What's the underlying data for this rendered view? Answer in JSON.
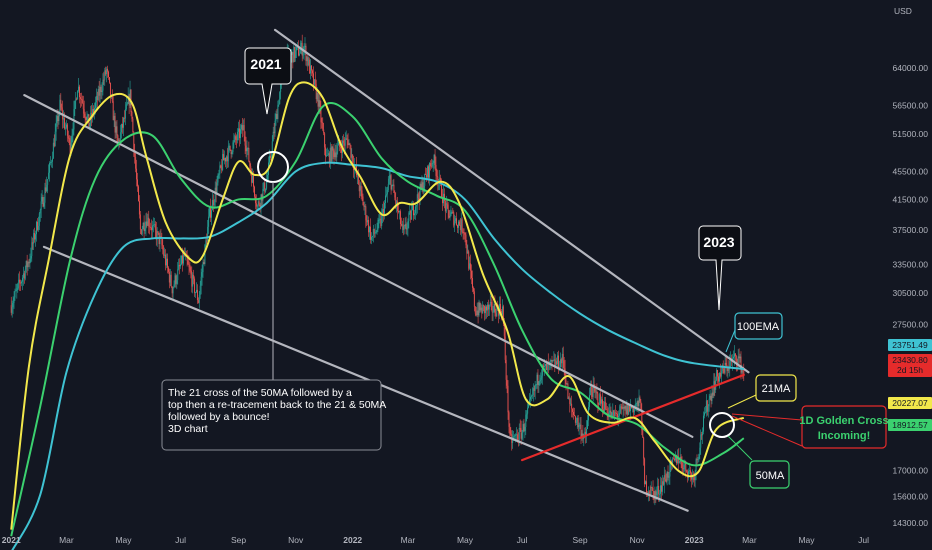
{
  "chart_data": {
    "type": "candlestick",
    "currency_label": "USD",
    "x_ticks": [
      "2021",
      "Mar",
      "May",
      "Jul",
      "Sep",
      "Nov",
      "2022",
      "Mar",
      "May",
      "Jul",
      "Sep",
      "Nov",
      "2023",
      "Mar",
      "May",
      "Jul"
    ],
    "x_tick_dates": [
      "2021-01-01",
      "2021-03-01",
      "2021-05-01",
      "2021-07-01",
      "2021-09-01",
      "2021-11-01",
      "2022-01-01",
      "2022-03-01",
      "2022-05-01",
      "2022-07-01",
      "2022-09-01",
      "2022-11-01",
      "2023-01-01",
      "2023-03-01",
      "2023-05-01",
      "2023-07-01"
    ],
    "y_ticks": [
      64000,
      56500,
      51500,
      45500,
      41500,
      37500,
      33500,
      30500,
      27500,
      17000,
      15600,
      14300
    ],
    "y_tick_labels": [
      "64000.00",
      "56500.00",
      "51500.00",
      "45500.00",
      "41500.00",
      "37500.00",
      "33500.00",
      "30500.00",
      "27500.00",
      "17000.00",
      "15600.00",
      "14300.00"
    ],
    "y_scale": "log",
    "ylim": [
      13800,
      80000
    ],
    "xlim": [
      "2020-12-20",
      "2023-07-25"
    ],
    "grid": false,
    "price_series": [
      {
        "date": "2021-01-01",
        "close": 29300
      },
      {
        "date": "2021-01-20",
        "close": 34000
      },
      {
        "date": "2021-02-10",
        "close": 45000
      },
      {
        "date": "2021-02-22",
        "close": 56500
      },
      {
        "date": "2021-03-05",
        "close": 49500
      },
      {
        "date": "2021-03-13",
        "close": 60500
      },
      {
        "date": "2021-03-25",
        "close": 53000
      },
      {
        "date": "2021-04-13",
        "close": 63500
      },
      {
        "date": "2021-04-25",
        "close": 49500
      },
      {
        "date": "2021-05-08",
        "close": 58500
      },
      {
        "date": "2021-05-19",
        "close": 37500
      },
      {
        "date": "2021-05-26",
        "close": 39000
      },
      {
        "date": "2021-06-10",
        "close": 36000
      },
      {
        "date": "2021-06-22",
        "close": 31000
      },
      {
        "date": "2021-07-05",
        "close": 34500
      },
      {
        "date": "2021-07-20",
        "close": 29800
      },
      {
        "date": "2021-08-01",
        "close": 39500
      },
      {
        "date": "2021-08-15",
        "close": 47000
      },
      {
        "date": "2021-09-06",
        "close": 52500
      },
      {
        "date": "2021-09-21",
        "close": 40500
      },
      {
        "date": "2021-10-01",
        "close": 44000
      },
      {
        "date": "2021-10-20",
        "close": 65500
      },
      {
        "date": "2021-11-10",
        "close": 68500
      },
      {
        "date": "2021-11-25",
        "close": 57500
      },
      {
        "date": "2021-12-04",
        "close": 47500
      },
      {
        "date": "2021-12-27",
        "close": 50500
      },
      {
        "date": "2022-01-21",
        "close": 36500
      },
      {
        "date": "2022-01-31",
        "close": 38500
      },
      {
        "date": "2022-02-10",
        "close": 44500
      },
      {
        "date": "2022-02-24",
        "close": 37000
      },
      {
        "date": "2022-03-28",
        "close": 47500
      },
      {
        "date": "2022-04-11",
        "close": 40000
      },
      {
        "date": "2022-04-30",
        "close": 37700
      },
      {
        "date": "2022-05-12",
        "close": 28800
      },
      {
        "date": "2022-06-10",
        "close": 29000
      },
      {
        "date": "2022-06-18",
        "close": 18700
      },
      {
        "date": "2022-07-01",
        "close": 19300
      },
      {
        "date": "2022-07-20",
        "close": 23500
      },
      {
        "date": "2022-08-14",
        "close": 24500
      },
      {
        "date": "2022-08-20",
        "close": 21200
      },
      {
        "date": "2022-09-07",
        "close": 18800
      },
      {
        "date": "2022-09-12",
        "close": 22300
      },
      {
        "date": "2022-10-05",
        "close": 20300
      },
      {
        "date": "2022-11-05",
        "close": 21200
      },
      {
        "date": "2022-11-09",
        "close": 16200
      },
      {
        "date": "2022-11-21",
        "close": 15700
      },
      {
        "date": "2022-12-14",
        "close": 17800
      },
      {
        "date": "2022-12-31",
        "close": 16600
      },
      {
        "date": "2023-01-14",
        "close": 20900
      },
      {
        "date": "2023-01-25",
        "close": 23100
      },
      {
        "date": "2023-02-16",
        "close": 24800
      },
      {
        "date": "2023-02-23",
        "close": 23430.8
      }
    ],
    "series": [
      {
        "name": "21MA",
        "color": "#f2e84b",
        "points": [
          {
            "date": "2021-01-01",
            "value": 14000
          },
          {
            "date": "2021-01-20",
            "value": 24000
          },
          {
            "date": "2021-02-10",
            "value": 34000
          },
          {
            "date": "2021-03-05",
            "value": 48000
          },
          {
            "date": "2021-03-28",
            "value": 54500
          },
          {
            "date": "2021-04-20",
            "value": 58500
          },
          {
            "date": "2021-05-10",
            "value": 57000
          },
          {
            "date": "2021-05-25",
            "value": 48000
          },
          {
            "date": "2021-06-15",
            "value": 38500
          },
          {
            "date": "2021-07-10",
            "value": 34200
          },
          {
            "date": "2021-07-25",
            "value": 34500
          },
          {
            "date": "2021-08-15",
            "value": 41500
          },
          {
            "date": "2021-09-01",
            "value": 47000
          },
          {
            "date": "2021-09-18",
            "value": 45000
          },
          {
            "date": "2021-10-05",
            "value": 46500
          },
          {
            "date": "2021-10-25",
            "value": 58000
          },
          {
            "date": "2021-11-10",
            "value": 61000
          },
          {
            "date": "2021-11-30",
            "value": 58000
          },
          {
            "date": "2021-12-20",
            "value": 49500
          },
          {
            "date": "2022-01-10",
            "value": 44500
          },
          {
            "date": "2022-02-01",
            "value": 39500
          },
          {
            "date": "2022-02-20",
            "value": 41000
          },
          {
            "date": "2022-03-10",
            "value": 41000
          },
          {
            "date": "2022-04-05",
            "value": 44000
          },
          {
            "date": "2022-04-25",
            "value": 41000
          },
          {
            "date": "2022-05-20",
            "value": 32500
          },
          {
            "date": "2022-06-15",
            "value": 27000
          },
          {
            "date": "2022-07-05",
            "value": 21500
          },
          {
            "date": "2022-07-28",
            "value": 21500
          },
          {
            "date": "2022-08-20",
            "value": 23200
          },
          {
            "date": "2022-09-10",
            "value": 20500
          },
          {
            "date": "2022-10-05",
            "value": 19900
          },
          {
            "date": "2022-10-30",
            "value": 20200
          },
          {
            "date": "2022-11-20",
            "value": 18700
          },
          {
            "date": "2022-12-15",
            "value": 17000
          },
          {
            "date": "2023-01-05",
            "value": 16900
          },
          {
            "date": "2023-01-25",
            "value": 19500
          },
          {
            "date": "2023-02-23",
            "value": 20227.07
          }
        ]
      },
      {
        "name": "50MA",
        "color": "#3bd16f",
        "points": [
          {
            "date": "2021-01-01",
            "value": 13700
          },
          {
            "date": "2021-02-01",
            "value": 21000
          },
          {
            "date": "2021-03-05",
            "value": 34000
          },
          {
            "date": "2021-04-01",
            "value": 44500
          },
          {
            "date": "2021-05-01",
            "value": 50500
          },
          {
            "date": "2021-06-01",
            "value": 51200
          },
          {
            "date": "2021-07-01",
            "value": 44500
          },
          {
            "date": "2021-08-01",
            "value": 40500
          },
          {
            "date": "2021-09-01",
            "value": 41500
          },
          {
            "date": "2021-10-01",
            "value": 42000
          },
          {
            "date": "2021-11-01",
            "value": 47000
          },
          {
            "date": "2021-12-01",
            "value": 56500
          },
          {
            "date": "2022-01-01",
            "value": 54500
          },
          {
            "date": "2022-02-01",
            "value": 47500
          },
          {
            "date": "2022-03-01",
            "value": 44000
          },
          {
            "date": "2022-04-01",
            "value": 42000
          },
          {
            "date": "2022-05-01",
            "value": 40000
          },
          {
            "date": "2022-06-01",
            "value": 33500
          },
          {
            "date": "2022-07-01",
            "value": 27000
          },
          {
            "date": "2022-08-01",
            "value": 23000
          },
          {
            "date": "2022-09-01",
            "value": 22000
          },
          {
            "date": "2022-10-01",
            "value": 20400
          },
          {
            "date": "2022-11-01",
            "value": 19800
          },
          {
            "date": "2022-12-01",
            "value": 18300
          },
          {
            "date": "2023-01-01",
            "value": 17300
          },
          {
            "date": "2023-02-01",
            "value": 18000
          },
          {
            "date": "2023-02-23",
            "value": 18912.57
          }
        ]
      },
      {
        "name": "100EMA",
        "color": "#3fc3d3",
        "points": [
          {
            "date": "2021-01-01",
            "value": 13000
          },
          {
            "date": "2021-02-01",
            "value": 15700
          },
          {
            "date": "2021-03-01",
            "value": 23500
          },
          {
            "date": "2021-04-01",
            "value": 30500
          },
          {
            "date": "2021-05-01",
            "value": 35500
          },
          {
            "date": "2021-06-01",
            "value": 36500
          },
          {
            "date": "2021-07-01",
            "value": 36500
          },
          {
            "date": "2021-08-01",
            "value": 36700
          },
          {
            "date": "2021-09-01",
            "value": 38500
          },
          {
            "date": "2021-10-01",
            "value": 41000
          },
          {
            "date": "2021-11-01",
            "value": 45500
          },
          {
            "date": "2021-12-01",
            "value": 46800
          },
          {
            "date": "2022-01-01",
            "value": 46500
          },
          {
            "date": "2022-02-01",
            "value": 46000
          },
          {
            "date": "2022-03-01",
            "value": 44800
          },
          {
            "date": "2022-04-01",
            "value": 44000
          },
          {
            "date": "2022-05-01",
            "value": 41500
          },
          {
            "date": "2022-06-01",
            "value": 36500
          },
          {
            "date": "2022-07-01",
            "value": 33000
          },
          {
            "date": "2022-08-01",
            "value": 30500
          },
          {
            "date": "2022-09-01",
            "value": 28500
          },
          {
            "date": "2022-10-01",
            "value": 27000
          },
          {
            "date": "2022-11-01",
            "value": 25800
          },
          {
            "date": "2022-12-01",
            "value": 24800
          },
          {
            "date": "2023-01-01",
            "value": 24200
          },
          {
            "date": "2023-02-23",
            "value": 23751.49
          }
        ]
      }
    ],
    "trendlines": [
      {
        "color": "#b4b6be",
        "from": {
          "date": "2021-01-15",
          "value": 58500
        },
        "to": {
          "date": "2022-12-30",
          "value": 19000
        }
      },
      {
        "color": "#b4b6be",
        "from": {
          "date": "2021-02-05",
          "value": 35500
        },
        "to": {
          "date": "2022-12-25",
          "value": 14900
        }
      },
      {
        "color": "#b4b6be",
        "from": {
          "date": "2021-10-10",
          "value": 72500
        },
        "to": {
          "date": "2023-02-28",
          "value": 23500
        }
      },
      {
        "color": "#e52b2b",
        "from": {
          "date": "2022-07-01",
          "value": 17600
        },
        "to": {
          "date": "2023-02-23",
          "value": 23300
        }
      }
    ],
    "annotations": [
      {
        "text": "2021",
        "style": "dark-balloon"
      },
      {
        "text": "2023",
        "style": "dark-balloon"
      },
      {
        "text": "The 21 cross of the 50MA followed by a top then a re-tracement back to the  21 & 50MA followed by a bounce! 3D chart",
        "style": "note"
      },
      {
        "text": "100EMA",
        "color": "#3fc3d3"
      },
      {
        "text": "21MA",
        "color": "#f2e84b"
      },
      {
        "text": "50MA",
        "color": "#3bd16f"
      },
      {
        "text": "1D Golden Cross Incoming!",
        "color": "#3bd16f",
        "border": "#e52b2b"
      }
    ],
    "price_labels": [
      {
        "text": "23751.49",
        "color": "#3fc3d3"
      },
      {
        "text": "23430.80",
        "color": "#e52b2b",
        "sub": "2d 15h"
      },
      {
        "text": "20227.07",
        "color": "#f2e84b"
      },
      {
        "text": "18912.57",
        "color": "#3bd16f"
      }
    ]
  }
}
